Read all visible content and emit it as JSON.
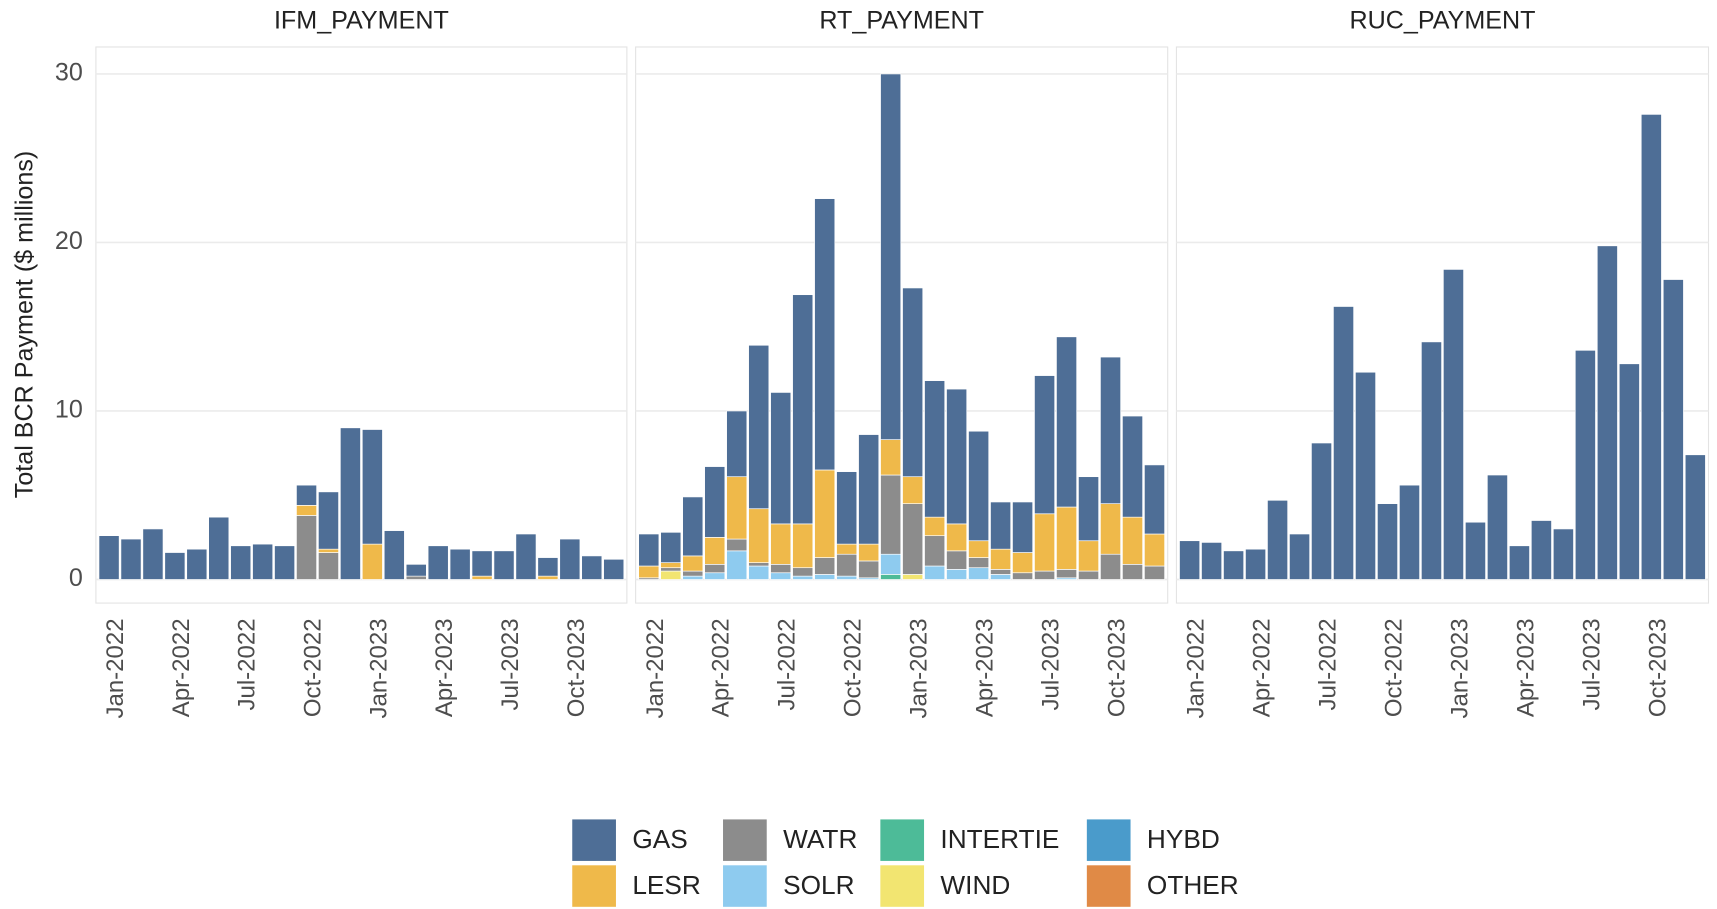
{
  "chart_data": [
    {
      "type": "bar",
      "stacked": true,
      "title": "IFM_PAYMENT",
      "ylabel": "Total BCR Payment ($ millions)",
      "categories": [
        "Jan-2022",
        null,
        null,
        "Apr-2022",
        null,
        null,
        "Jul-2022",
        null,
        null,
        "Oct-2022",
        null,
        null,
        "Jan-2023",
        null,
        null,
        "Apr-2023",
        null,
        null,
        "Jul-2023",
        null,
        null,
        "Oct-2023",
        null,
        null
      ],
      "ylim": [
        -1.4,
        31.6
      ],
      "yticks": [
        0,
        10,
        20,
        30
      ],
      "grid": true,
      "series": [
        {
          "name": "GAS",
          "color": "#4e6e96",
          "values": [
            2.6,
            2.4,
            3.0,
            1.6,
            1.8,
            3.7,
            2.0,
            2.1,
            2.0,
            1.2,
            3.4,
            9.0,
            6.8,
            2.9,
            0.7,
            2.0,
            1.8,
            1.5,
            1.7,
            2.7,
            1.1,
            2.4,
            1.4,
            1.2
          ]
        },
        {
          "name": "LESR",
          "color": "#efb94a",
          "values": [
            0,
            0,
            0,
            0,
            0,
            0,
            0,
            0,
            0,
            0.6,
            0.2,
            0,
            2.1,
            0,
            0,
            0,
            0,
            0.2,
            0,
            0,
            0.2,
            0,
            0,
            0
          ]
        },
        {
          "name": "WATR",
          "color": "#8c8c8c",
          "values": [
            0,
            0,
            0,
            0,
            0,
            0,
            0,
            0,
            0,
            3.8,
            1.6,
            0,
            0,
            0,
            0.2,
            0,
            0,
            0,
            0,
            0,
            0,
            0,
            0,
            0
          ]
        }
      ]
    },
    {
      "type": "bar",
      "stacked": true,
      "title": "RT_PAYMENT",
      "categories": [
        "Jan-2022",
        null,
        null,
        "Apr-2022",
        null,
        null,
        "Jul-2022",
        null,
        null,
        "Oct-2022",
        null,
        null,
        "Jan-2023",
        null,
        null,
        "Apr-2023",
        null,
        null,
        "Jul-2023",
        null,
        null,
        "Oct-2023",
        null,
        null
      ],
      "ylim": [
        -1.4,
        31.6
      ],
      "yticks": [
        0,
        10,
        20,
        30
      ],
      "grid": true,
      "series": [
        {
          "name": "GAS",
          "color": "#4e6e96",
          "values": [
            1.9,
            1.8,
            3.5,
            4.2,
            3.9,
            9.7,
            7.8,
            13.6,
            16.1,
            4.3,
            6.5,
            21.7,
            11.2,
            8.1,
            8.0,
            6.5,
            2.8,
            3.0,
            8.2,
            10.1,
            3.8,
            8.7,
            6.0,
            4.1
          ]
        },
        {
          "name": "LESR",
          "color": "#efb94a",
          "values": [
            0.7,
            0.3,
            0.9,
            1.6,
            3.7,
            3.2,
            2.4,
            2.6,
            5.2,
            0.6,
            1.0,
            2.1,
            1.6,
            1.1,
            1.6,
            1.0,
            1.2,
            1.2,
            3.4,
            3.7,
            1.8,
            3.0,
            2.8,
            1.9
          ]
        },
        {
          "name": "WATR",
          "color": "#8c8c8c",
          "values": [
            0.1,
            0.2,
            0.3,
            0.5,
            0.7,
            0.2,
            0.5,
            0.5,
            1.0,
            1.3,
            1.0,
            4.7,
            4.2,
            1.8,
            1.1,
            0.6,
            0.3,
            0.4,
            0.5,
            0.5,
            0.5,
            1.5,
            0.9,
            0.8
          ]
        },
        {
          "name": "SOLR",
          "color": "#8ecbef",
          "values": [
            0,
            0,
            0.2,
            0.4,
            1.7,
            0.8,
            0.4,
            0.2,
            0.3,
            0.2,
            0.1,
            1.2,
            0,
            0.8,
            0.6,
            0.7,
            0.3,
            0,
            0,
            0.1,
            0,
            0,
            0,
            0
          ]
        },
        {
          "name": "INTERTIE",
          "color": "#4dbb98",
          "values": [
            0,
            0,
            0,
            0,
            0,
            0,
            0,
            0,
            0,
            0,
            0,
            0.3,
            0,
            0,
            0,
            0,
            0,
            0,
            0,
            0,
            0,
            0,
            0,
            0
          ]
        },
        {
          "name": "WIND",
          "color": "#f2e571",
          "values": [
            0,
            0.5,
            0,
            0,
            0,
            0,
            0,
            0,
            0,
            0,
            0,
            0,
            0.3,
            0,
            0,
            0,
            0,
            0,
            0,
            0,
            0,
            0,
            0,
            0
          ]
        },
        {
          "name": "HYBD",
          "color": "#4a9bcb",
          "values": [
            0,
            0,
            0,
            0,
            0,
            0,
            0,
            0,
            0,
            0,
            0,
            0,
            0,
            0,
            0,
            0,
            0,
            0,
            0,
            0,
            0,
            0,
            0,
            0
          ]
        },
        {
          "name": "OTHER",
          "color": "#e08a46",
          "values": [
            0,
            0,
            0,
            0,
            0,
            0,
            0,
            0,
            0,
            0,
            0,
            0,
            0,
            0,
            0,
            0,
            0,
            0,
            0,
            0,
            0,
            0,
            0,
            0
          ]
        }
      ]
    },
    {
      "type": "bar",
      "stacked": true,
      "title": "RUC_PAYMENT",
      "categories": [
        "Jan-2022",
        null,
        null,
        "Apr-2022",
        null,
        null,
        "Jul-2022",
        null,
        null,
        "Oct-2022",
        null,
        null,
        "Jan-2023",
        null,
        null,
        "Apr-2023",
        null,
        null,
        "Jul-2023",
        null,
        null,
        "Oct-2023",
        null,
        null
      ],
      "ylim": [
        -1.4,
        31.6
      ],
      "yticks": [
        0,
        10,
        20,
        30
      ],
      "grid": true,
      "series": [
        {
          "name": "GAS",
          "color": "#4e6e96",
          "values": [
            2.3,
            2.2,
            1.7,
            1.8,
            4.7,
            2.7,
            8.1,
            16.2,
            12.3,
            4.5,
            5.6,
            14.1,
            18.4,
            3.4,
            6.2,
            2.0,
            3.5,
            3.0,
            13.6,
            19.8,
            12.8,
            27.6,
            17.8,
            7.4
          ]
        }
      ]
    }
  ]
}
